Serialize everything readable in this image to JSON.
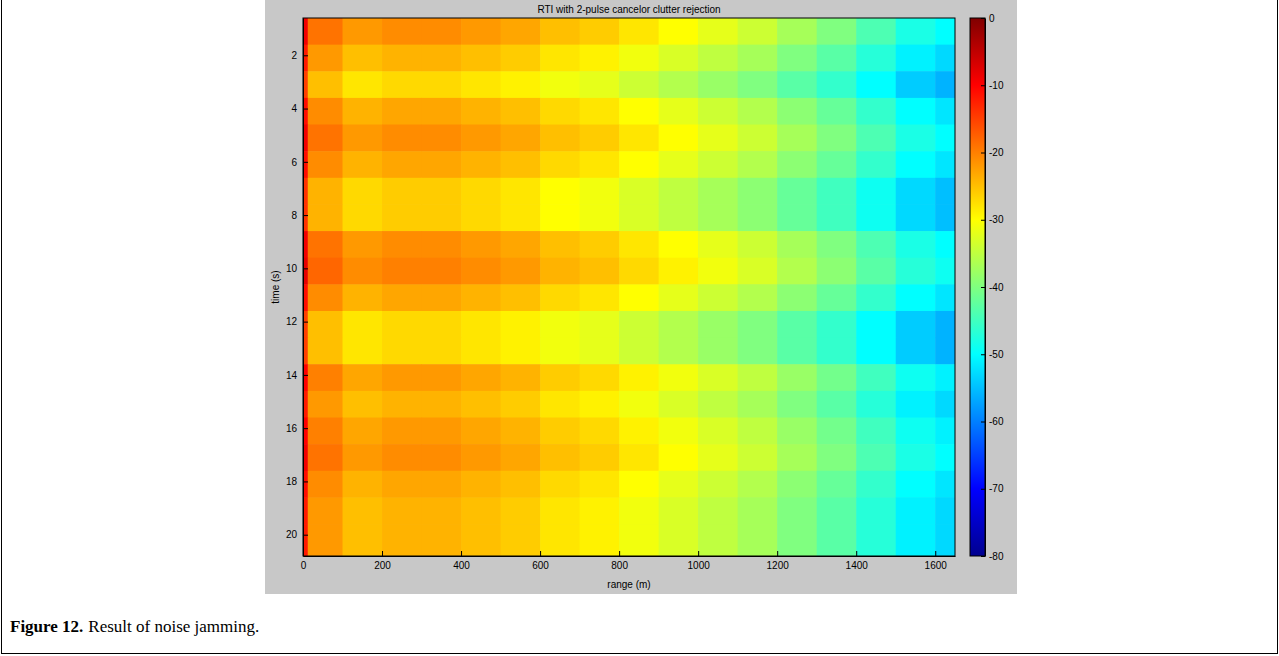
{
  "chart_data": {
    "type": "heatmap",
    "title": "RTI with 2-pulse cancelor clutter rejection",
    "x_label": "range (m)",
    "y_label": "time (s)",
    "figure_label": "Figure 12.",
    "caption": "Result of noise jamming.",
    "xlim": [
      0,
      1650
    ],
    "ylim": [
      0.6,
      20.8
    ],
    "xticks": [
      0,
      200,
      400,
      600,
      800,
      1000,
      1200,
      1400,
      1600
    ],
    "yticks": [
      2,
      4,
      6,
      8,
      10,
      12,
      14,
      16,
      18,
      20
    ],
    "x_bins": [
      0,
      12,
      100,
      200,
      300,
      400,
      500,
      600,
      700,
      800,
      900,
      1000,
      1100,
      1200,
      1300,
      1400,
      1500,
      1600,
      1650
    ],
    "y_bins": [
      0.6,
      1.6,
      2.6,
      3.6,
      4.6,
      5.6,
      6.6,
      7.6,
      8.6,
      9.6,
      10.6,
      11.6,
      12.6,
      13.6,
      14.6,
      15.6,
      16.6,
      17.6,
      18.6,
      19.6,
      20.8
    ],
    "cells": [
      [
        -9,
        -19,
        -22,
        -21,
        -21,
        -22,
        -23,
        -25,
        -26,
        -28,
        -30,
        -32,
        -34,
        -37,
        -40,
        -44,
        -48,
        -50
      ],
      [
        -12,
        -22,
        -25,
        -24,
        -24,
        -25,
        -26,
        -28,
        -29,
        -31,
        -33,
        -35,
        -37,
        -40,
        -43,
        -47,
        -51,
        -53
      ],
      [
        -15,
        -25,
        -28,
        -27,
        -27,
        -28,
        -29,
        -31,
        -32,
        -34,
        -36,
        -38,
        -40,
        -43,
        -46,
        -50,
        -54,
        -56
      ],
      [
        -11,
        -21,
        -24,
        -23,
        -23,
        -24,
        -25,
        -27,
        -28,
        -30,
        -32,
        -34,
        -36,
        -39,
        -42,
        -46,
        -50,
        -52
      ],
      [
        -9,
        -19,
        -22,
        -21,
        -21,
        -22,
        -23,
        -25,
        -26,
        -28,
        -30,
        -32,
        -34,
        -37,
        -40,
        -44,
        -48,
        -50
      ],
      [
        -11,
        -21,
        -24,
        -23,
        -23,
        -24,
        -25,
        -27,
        -28,
        -30,
        -32,
        -34,
        -36,
        -39,
        -42,
        -46,
        -50,
        -52
      ],
      [
        -14,
        -24,
        -27,
        -26,
        -26,
        -27,
        -28,
        -30,
        -31,
        -33,
        -35,
        -37,
        -39,
        -42,
        -45,
        -49,
        -53,
        -55
      ],
      [
        -14,
        -24,
        -27,
        -26,
        -26,
        -27,
        -28,
        -30,
        -31,
        -33,
        -35,
        -37,
        -39,
        -42,
        -45,
        -49,
        -53,
        -55
      ],
      [
        -9,
        -19,
        -22,
        -21,
        -21,
        -22,
        -23,
        -25,
        -26,
        -28,
        -30,
        -32,
        -34,
        -37,
        -40,
        -44,
        -48,
        -50
      ],
      [
        -8,
        -18,
        -21,
        -20,
        -20,
        -21,
        -22,
        -24,
        -25,
        -27,
        -29,
        -31,
        -33,
        -36,
        -39,
        -43,
        -47,
        -49
      ],
      [
        -11,
        -21,
        -24,
        -23,
        -23,
        -24,
        -25,
        -27,
        -28,
        -30,
        -32,
        -34,
        -36,
        -39,
        -42,
        -46,
        -50,
        -52
      ],
      [
        -15,
        -25,
        -28,
        -27,
        -27,
        -28,
        -29,
        -31,
        -32,
        -34,
        -36,
        -38,
        -40,
        -43,
        -46,
        -50,
        -54,
        -56
      ],
      [
        -15,
        -25,
        -28,
        -27,
        -27,
        -28,
        -29,
        -31,
        -32,
        -34,
        -36,
        -38,
        -40,
        -43,
        -46,
        -50,
        -54,
        -56
      ],
      [
        -10,
        -20,
        -23,
        -22,
        -22,
        -23,
        -24,
        -26,
        -27,
        -29,
        -31,
        -33,
        -35,
        -38,
        -41,
        -45,
        -49,
        -51
      ],
      [
        -12,
        -22,
        -25,
        -24,
        -24,
        -25,
        -26,
        -28,
        -29,
        -31,
        -33,
        -35,
        -37,
        -40,
        -43,
        -47,
        -51,
        -53
      ],
      [
        -10,
        -20,
        -23,
        -22,
        -22,
        -23,
        -24,
        -26,
        -27,
        -29,
        -31,
        -33,
        -35,
        -38,
        -41,
        -45,
        -49,
        -51
      ],
      [
        -9,
        -19,
        -22,
        -21,
        -21,
        -22,
        -23,
        -25,
        -26,
        -28,
        -30,
        -32,
        -34,
        -37,
        -40,
        -44,
        -48,
        -50
      ],
      [
        -11,
        -21,
        -24,
        -23,
        -23,
        -24,
        -25,
        -27,
        -28,
        -30,
        -32,
        -34,
        -36,
        -39,
        -42,
        -46,
        -50,
        -52
      ],
      [
        -12,
        -22,
        -25,
        -24,
        -24,
        -25,
        -26,
        -28,
        -29,
        -31,
        -33,
        -35,
        -37,
        -40,
        -43,
        -47,
        -51,
        -53
      ],
      [
        -12,
        -22,
        -25,
        -24,
        -24,
        -25,
        -26,
        -28,
        -29,
        -31,
        -33,
        -35,
        -37,
        -40,
        -43,
        -47,
        -51,
        -53
      ]
    ],
    "color_range": [
      -80,
      0
    ],
    "color_ticks": [
      0,
      -10,
      -20,
      -30,
      -40,
      -50,
      -60,
      -70,
      -80
    ]
  }
}
